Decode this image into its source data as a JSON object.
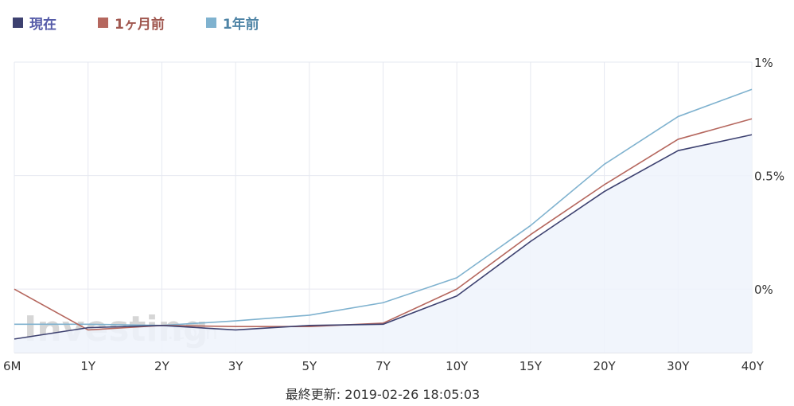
{
  "legend": [
    {
      "label": "現在",
      "color": "#3d4170",
      "text_color": "#545aa8"
    },
    {
      "label": "1ヶ月前",
      "color": "#b5675e",
      "text_color": "#a0574f"
    },
    {
      "label": "1年前",
      "color": "#7fb2cf",
      "text_color": "#4e84a6"
    }
  ],
  "watermark": {
    "brand": "Investing",
    "suffix": ".com"
  },
  "chart_data": {
    "type": "line",
    "categories": [
      "6M",
      "1Y",
      "2Y",
      "3Y",
      "5Y",
      "7Y",
      "10Y",
      "15Y",
      "20Y",
      "30Y",
      "40Y"
    ],
    "ylim": [
      -0.28,
      1.0
    ],
    "y_ticks": [
      {
        "value": 1.0,
        "label": "1%"
      },
      {
        "value": 0.5,
        "label": "0.5%"
      },
      {
        "value": 0.0,
        "label": "0%"
      }
    ],
    "y_axis_position": "right",
    "grid": true,
    "legend_position": "top-left",
    "series": [
      {
        "name": "現在",
        "color": "#3d4170",
        "fill": "#eef3fc",
        "values": [
          -0.22,
          -0.17,
          -0.16,
          -0.18,
          -0.16,
          -0.155,
          -0.03,
          0.21,
          0.43,
          0.61,
          0.68
        ]
      },
      {
        "name": "1ヶ月前",
        "color": "#b5675e",
        "values": [
          0.0,
          -0.18,
          -0.16,
          -0.165,
          -0.165,
          -0.15,
          0.0,
          0.24,
          0.46,
          0.66,
          0.75
        ]
      },
      {
        "name": "1年前",
        "color": "#7fb2cf",
        "values": [
          -0.155,
          -0.155,
          -0.16,
          -0.14,
          -0.115,
          -0.06,
          0.05,
          0.28,
          0.55,
          0.76,
          0.88
        ]
      }
    ]
  },
  "footer": {
    "last_updated": "最終更新: 2019-02-26 18:05:03"
  }
}
